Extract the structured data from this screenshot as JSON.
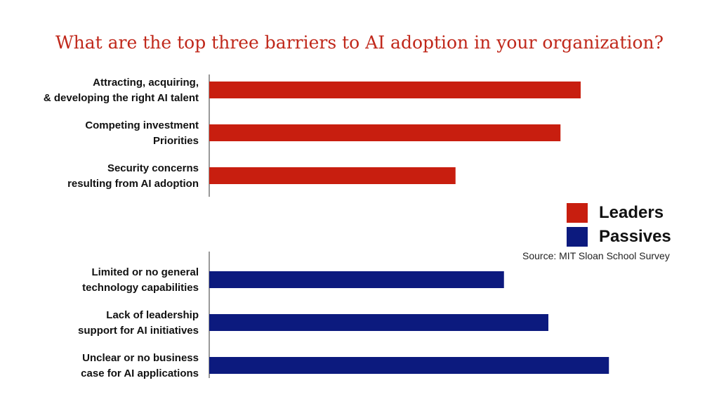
{
  "chart_data": {
    "type": "bar",
    "orientation": "horizontal",
    "title": "What are the top three barriers to AI adoption in your organization?",
    "xlabel": "",
    "ylabel": "",
    "xlim": [
      0,
      100
    ],
    "grid": false,
    "legend_position": "right",
    "series": [
      {
        "name": "Leaders",
        "color": "#c81e0f",
        "categories": [
          [
            "Attracting, acquiring,",
            "& developing the right AI talent"
          ],
          [
            "Competing investment",
            "Priorities"
          ],
          [
            "Security concerns",
            "resulting from AI adoption"
          ]
        ],
        "values": [
          92,
          87,
          61
        ]
      },
      {
        "name": "Passives",
        "color": "#0c1a7e",
        "categories": [
          [
            "Limited or no general",
            "technology capabilities"
          ],
          [
            "Lack of leadership",
            "support for AI initiatives"
          ],
          [
            "Unclear or no business",
            "case for AI applications"
          ]
        ],
        "values": [
          73,
          84,
          99
        ]
      }
    ]
  },
  "legend": {
    "items": [
      {
        "label": "Leaders",
        "color": "#c81e0f"
      },
      {
        "label": "Passives",
        "color": "#0c1a7e"
      }
    ]
  },
  "source": "Source: MIT Sloan School Survey"
}
